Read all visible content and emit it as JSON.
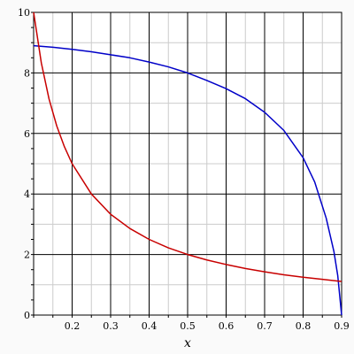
{
  "chart_data": {
    "type": "line",
    "xlabel": "x",
    "ylabel": "",
    "xlim": [
      0.1,
      0.9
    ],
    "ylim": [
      0,
      10
    ],
    "grid": true,
    "x_ticks": [
      0.2,
      0.3,
      0.4,
      0.5,
      0.6,
      0.7,
      0.8,
      0.9
    ],
    "x_tick_labels": [
      "0.2",
      "0.3",
      "0.4",
      "0.5",
      "0.6",
      "0.7",
      "0.8",
      "0.9"
    ],
    "y_ticks": [
      0,
      2,
      4,
      6,
      8,
      10
    ],
    "y_tick_labels": [
      "0",
      "2",
      "4",
      "6",
      "8",
      "10"
    ],
    "series": [
      {
        "color": "#0000c8",
        "x": [
          0.1,
          0.15,
          0.2,
          0.25,
          0.3,
          0.35,
          0.4,
          0.45,
          0.5,
          0.55,
          0.6,
          0.65,
          0.7,
          0.75,
          0.8,
          0.83,
          0.86,
          0.88,
          0.89,
          0.9
        ],
        "y": [
          8.9,
          8.85,
          8.78,
          8.7,
          8.6,
          8.5,
          8.36,
          8.2,
          8.0,
          7.75,
          7.48,
          7.15,
          6.7,
          6.1,
          5.2,
          4.4,
          3.2,
          2.1,
          1.3,
          0.0
        ]
      },
      {
        "color": "#c80000",
        "x": [
          0.1,
          0.12,
          0.14,
          0.16,
          0.18,
          0.2,
          0.25,
          0.3,
          0.35,
          0.4,
          0.45,
          0.5,
          0.55,
          0.6,
          0.65,
          0.7,
          0.75,
          0.8,
          0.85,
          0.9
        ],
        "y": [
          10.0,
          8.33,
          7.14,
          6.25,
          5.56,
          5.0,
          4.0,
          3.33,
          2.86,
          2.5,
          2.22,
          2.0,
          1.82,
          1.67,
          1.54,
          1.43,
          1.33,
          1.25,
          1.18,
          1.11
        ]
      }
    ]
  }
}
